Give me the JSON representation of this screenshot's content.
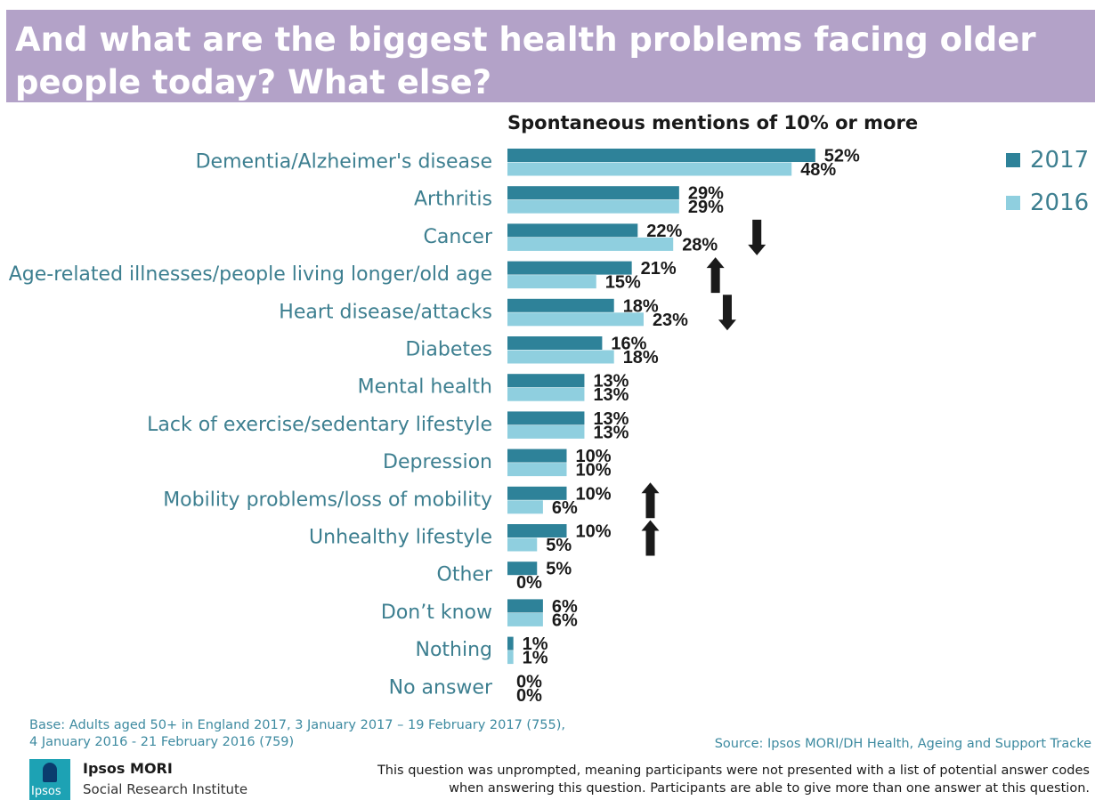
{
  "title": "And what are the biggest health problems facing older people today? What else?",
  "subtitle": "Spontaneous mentions of 10% or more",
  "base_line1": "Base: Adults aged 50+ in England 2017, 3 January 2017 – 19 February 2017 (755),",
  "base_line2": "4 January 2016 - 21 February 2016 (759)",
  "source": "Source: Ipsos MORI/DH Health, Ageing and Support Tracke",
  "logo_text": "Ipsos",
  "org_name": "Ipsos MORI",
  "org_sub": "Social Research Institute",
  "footnote_line1": "This question was unprompted, meaning participants were not presented with a list of potential answer codes",
  "footnote_line2": "when answering this question. Participants are able to give more than one answer at this question.",
  "colors": {
    "title_bg": "#b3a2c8",
    "series_2017": "#2e8299",
    "series_2016": "#8fcfdf",
    "label_text": "#3d7f90",
    "arrow": "#1a1a1a"
  },
  "chart_data": {
    "type": "bar",
    "orientation": "horizontal",
    "categories": [
      "Dementia/Alzheimer's disease",
      "Arthritis",
      "Cancer",
      "Age-related illnesses/people living longer/old age",
      "Heart disease/attacks",
      "Diabetes",
      "Mental health",
      "Lack of exercise/sedentary lifestyle",
      "Depression",
      "Mobility problems/loss of mobility",
      "Unhealthy lifestyle",
      "Other",
      "Don’t know",
      "Nothing",
      "No answer"
    ],
    "series": [
      {
        "name": "2017",
        "values": [
          52,
          29,
          22,
          21,
          18,
          16,
          13,
          13,
          10,
          10,
          10,
          5,
          6,
          1,
          0
        ]
      },
      {
        "name": "2016",
        "values": [
          48,
          29,
          28,
          15,
          23,
          18,
          13,
          13,
          10,
          6,
          5,
          0,
          6,
          1,
          0
        ]
      }
    ],
    "value_suffix": "%",
    "significant_change": [
      null,
      null,
      "down",
      "up",
      "down",
      null,
      null,
      null,
      null,
      "up",
      "up",
      null,
      null,
      null,
      null
    ],
    "legend_position": "top-right",
    "xlim": [
      0,
      100
    ]
  }
}
